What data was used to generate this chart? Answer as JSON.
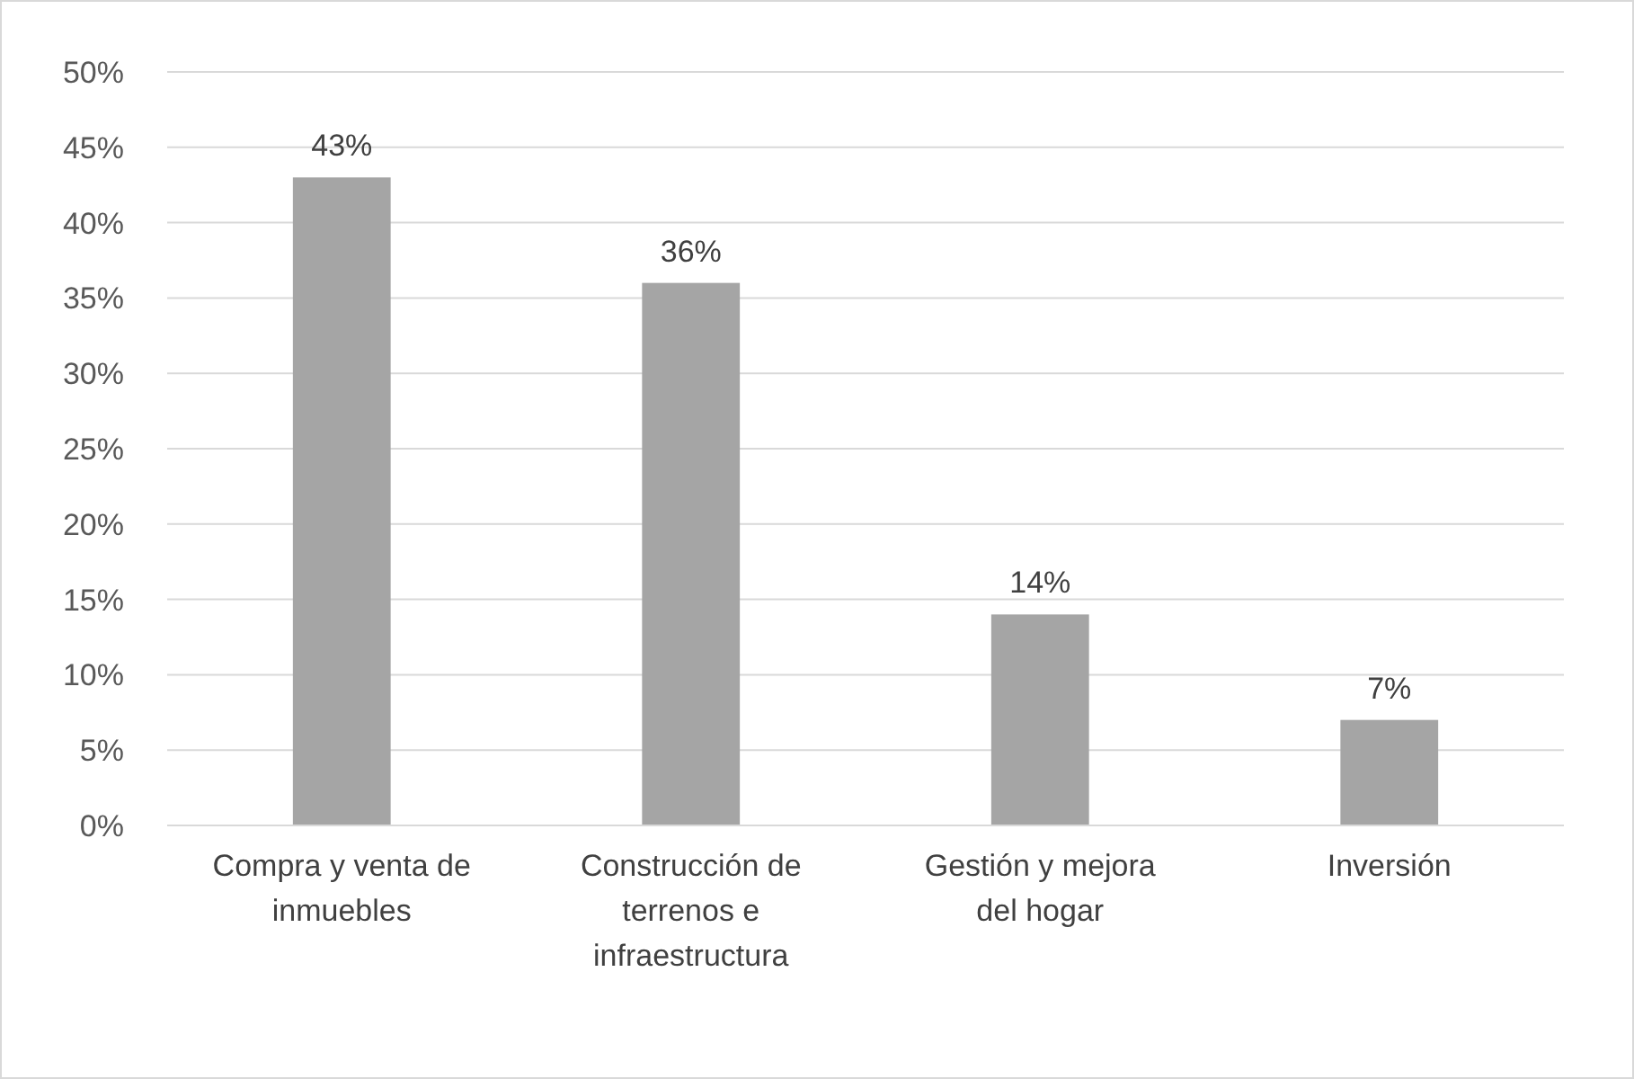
{
  "chart_data": {
    "type": "bar",
    "categories": [
      "Compra y venta de inmuebles",
      "Construcción de terrenos e infraestructura",
      "Gestión y mejora del hogar",
      "Inversión"
    ],
    "values": [
      43,
      36,
      14,
      7
    ],
    "color": "#a5a5a5",
    "value_labels": [
      "43%",
      "36%",
      "14%",
      "7%"
    ],
    "ylim": [
      0,
      50
    ],
    "yticks": [
      {
        "value": 0,
        "label": "0%"
      },
      {
        "value": 5,
        "label": "5%"
      },
      {
        "value": 10,
        "label": "10%"
      },
      {
        "value": 15,
        "label": "15%"
      },
      {
        "value": 20,
        "label": "20%"
      },
      {
        "value": 25,
        "label": "25%"
      },
      {
        "value": 30,
        "label": "30%"
      },
      {
        "value": 35,
        "label": "35%"
      },
      {
        "value": 40,
        "label": "40%"
      },
      {
        "value": 45,
        "label": "45%"
      },
      {
        "value": 50,
        "label": "50%"
      }
    ],
    "grid": "y"
  }
}
